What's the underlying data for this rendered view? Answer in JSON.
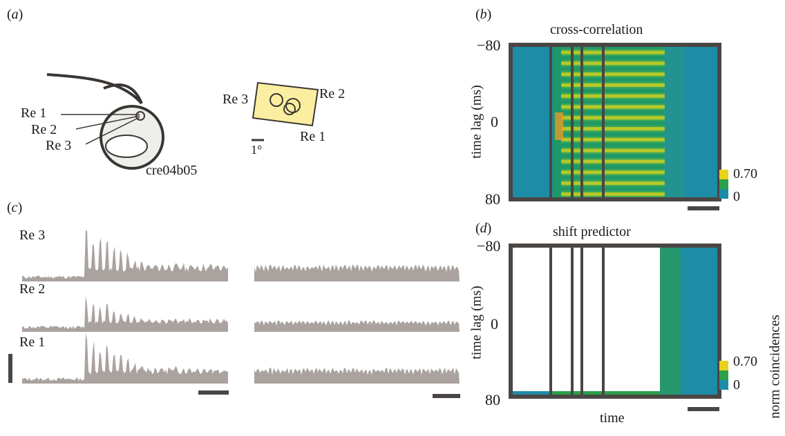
{
  "panels": {
    "a": {
      "label": "a",
      "electrodes": [
        "Re 1",
        "Re 2",
        "Re 3"
      ],
      "cell_id": "cre04b05",
      "rf_labels": {
        "re1": "Re 1",
        "re2": "Re 2",
        "re3": "Re 3"
      },
      "scale": "1°"
    },
    "b": {
      "label": "b",
      "title": "cross-correlation",
      "ylabel": "time lag (ms)",
      "yticks": [
        "−80",
        "0",
        "80"
      ],
      "colorbar": {
        "max": "0.70",
        "min": "0"
      }
    },
    "c": {
      "label": "c",
      "rows": [
        "Re 3",
        "Re 2",
        "Re 1"
      ]
    },
    "d": {
      "label": "d",
      "title": "shift predictor",
      "ylabel": "time lag (ms)",
      "yticks": [
        "−80",
        "0",
        "80"
      ],
      "xlabel": "time",
      "colorbar": {
        "max": "0.70",
        "min": "0"
      },
      "colorbar_label": "norm coincidences"
    }
  },
  "colors": {
    "frame": "#4a4644",
    "heat_low": "#1d8ca6",
    "heat_mid": "#2aa04a",
    "heat_high": "#e8d21a",
    "trace": "#aaa29f",
    "rf_fill": "#fbeea0"
  }
}
